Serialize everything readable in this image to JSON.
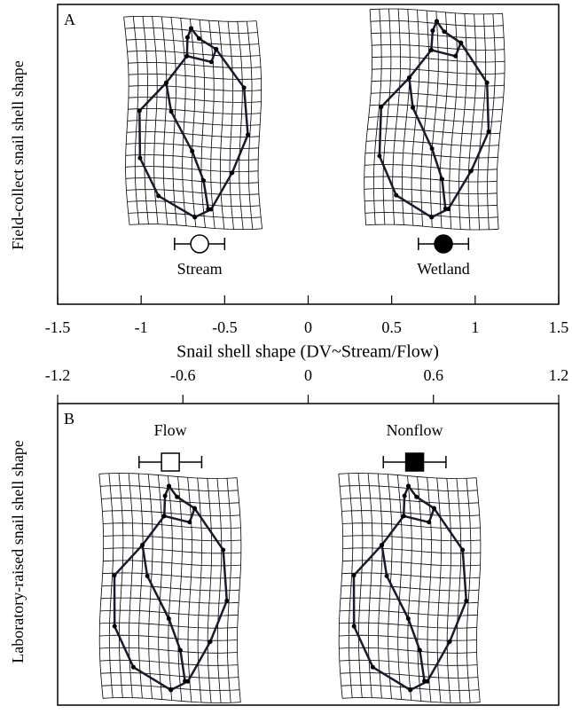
{
  "chart_data": [
    {
      "type": "scatter",
      "panel_label": "A",
      "ylabel": "Field-collect snail shell shape",
      "xlabel": "Snail shell shape (DV~Stream/Flow)",
      "xlim": [
        -1.5,
        1.5
      ],
      "xticks": [
        -1.5,
        -1,
        -0.5,
        0,
        0.5,
        1,
        1.5
      ],
      "series": [
        {
          "name": "Stream",
          "x": -0.65,
          "xerr": 0.15,
          "marker": "circle",
          "color": "#ffffff"
        },
        {
          "name": "Wetland",
          "x": 0.81,
          "xerr": 0.15,
          "marker": "circle",
          "color": "#000000"
        }
      ]
    },
    {
      "type": "scatter",
      "panel_label": "B",
      "ylabel": "Laboratory-raised snail shell shape",
      "xlim": [
        -1.2,
        1.2
      ],
      "xticks": [
        -1.2,
        -0.6,
        0,
        0.6,
        1.2
      ],
      "series": [
        {
          "name": "Flow",
          "x": -0.66,
          "xerr": 0.15,
          "marker": "square",
          "color": "#ffffff"
        },
        {
          "name": "Nonflow",
          "x": 0.51,
          "xerr": 0.15,
          "marker": "square",
          "color": "#000000"
        }
      ]
    }
  ]
}
